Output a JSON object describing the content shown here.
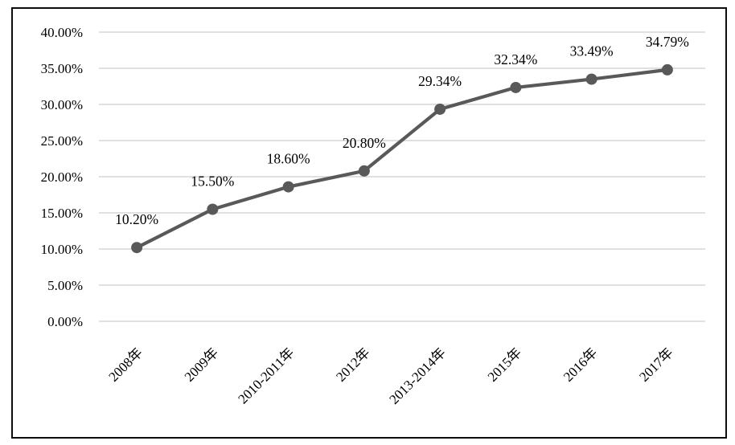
{
  "chart_data": {
    "type": "line",
    "title": "",
    "xlabel": "",
    "ylabel": "",
    "categories": [
      "2008年",
      "2009年",
      "2010-2011年",
      "2012年",
      "2013-2014年",
      "2015年",
      "2016年",
      "2017年"
    ],
    "values": [
      10.2,
      15.5,
      18.6,
      20.8,
      29.34,
      32.34,
      33.49,
      34.79
    ],
    "data_labels": [
      "10.20%",
      "15.50%",
      "18.60%",
      "20.80%",
      "29.34%",
      "32.34%",
      "33.49%",
      "34.79%"
    ],
    "ylim": [
      0,
      40
    ],
    "ytick_step": 5,
    "ytick_labels": [
      "0.00%",
      "5.00%",
      "10.00%",
      "15.00%",
      "20.00%",
      "25.00%",
      "30.00%",
      "35.00%",
      "40.00%"
    ],
    "grid": true,
    "legend": false,
    "colors": {
      "line": "#595959",
      "marker": "#595959",
      "gridline": "#d6d6d6",
      "label_text": "#000000",
      "frame_border": "#0d0d0d",
      "background": "#ffffff"
    }
  }
}
